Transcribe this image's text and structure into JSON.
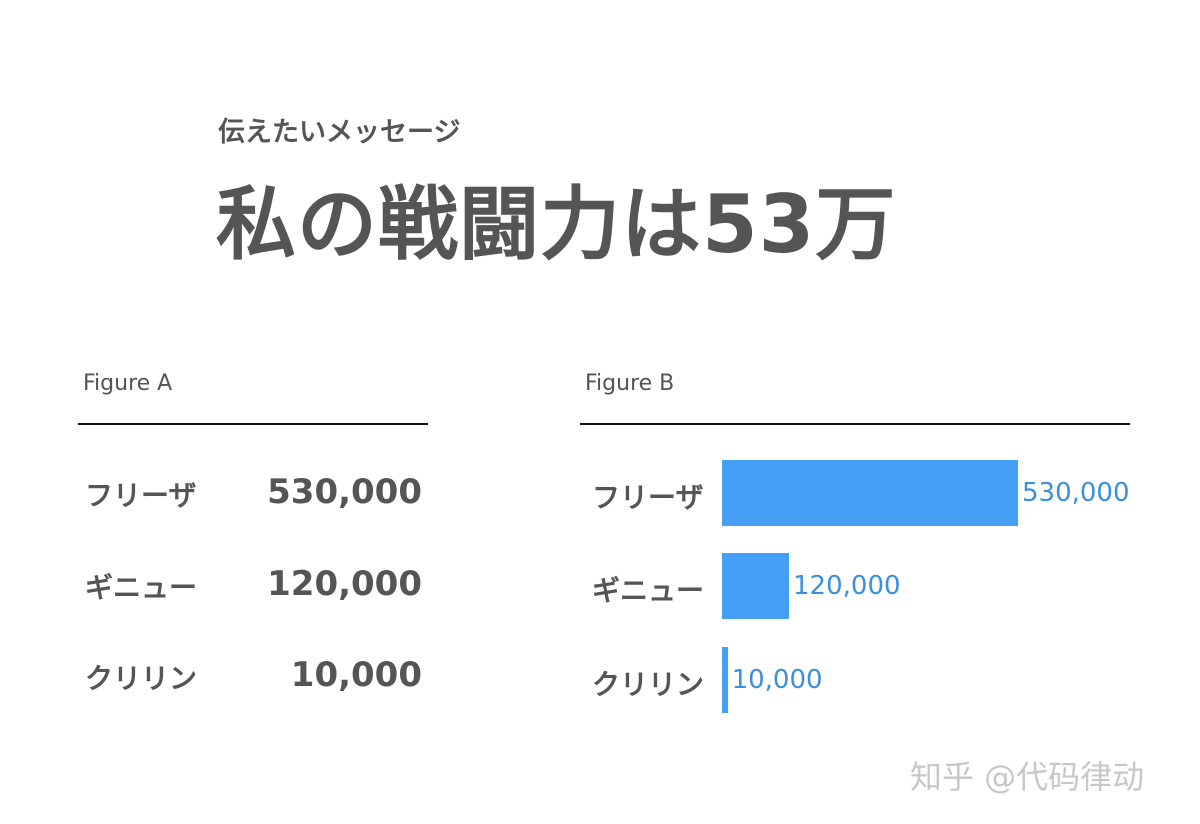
{
  "header": {
    "subtitle": "伝えたいメッセージ",
    "title": "私の戦闘力は53万"
  },
  "figure_a": {
    "label": "Figure A",
    "rows": [
      {
        "name": "フリーザ",
        "value": "530,000"
      },
      {
        "name": "ギニュー",
        "value": "120,000"
      },
      {
        "name": "クリリン",
        "value": "10,000"
      }
    ]
  },
  "chart_data": {
    "type": "bar",
    "orientation": "horizontal",
    "title": "Figure B",
    "categories": [
      "フリーザ",
      "ギニュー",
      "クリリン"
    ],
    "values": [
      530000,
      120000,
      10000
    ],
    "value_labels": [
      "530,000",
      "120,000",
      "10,000"
    ],
    "xlim": [
      0,
      530000
    ],
    "grid": false,
    "bar_color": "#45a0f5",
    "label_color": "#3d8fdc"
  },
  "watermark": "知乎 @代码律动"
}
